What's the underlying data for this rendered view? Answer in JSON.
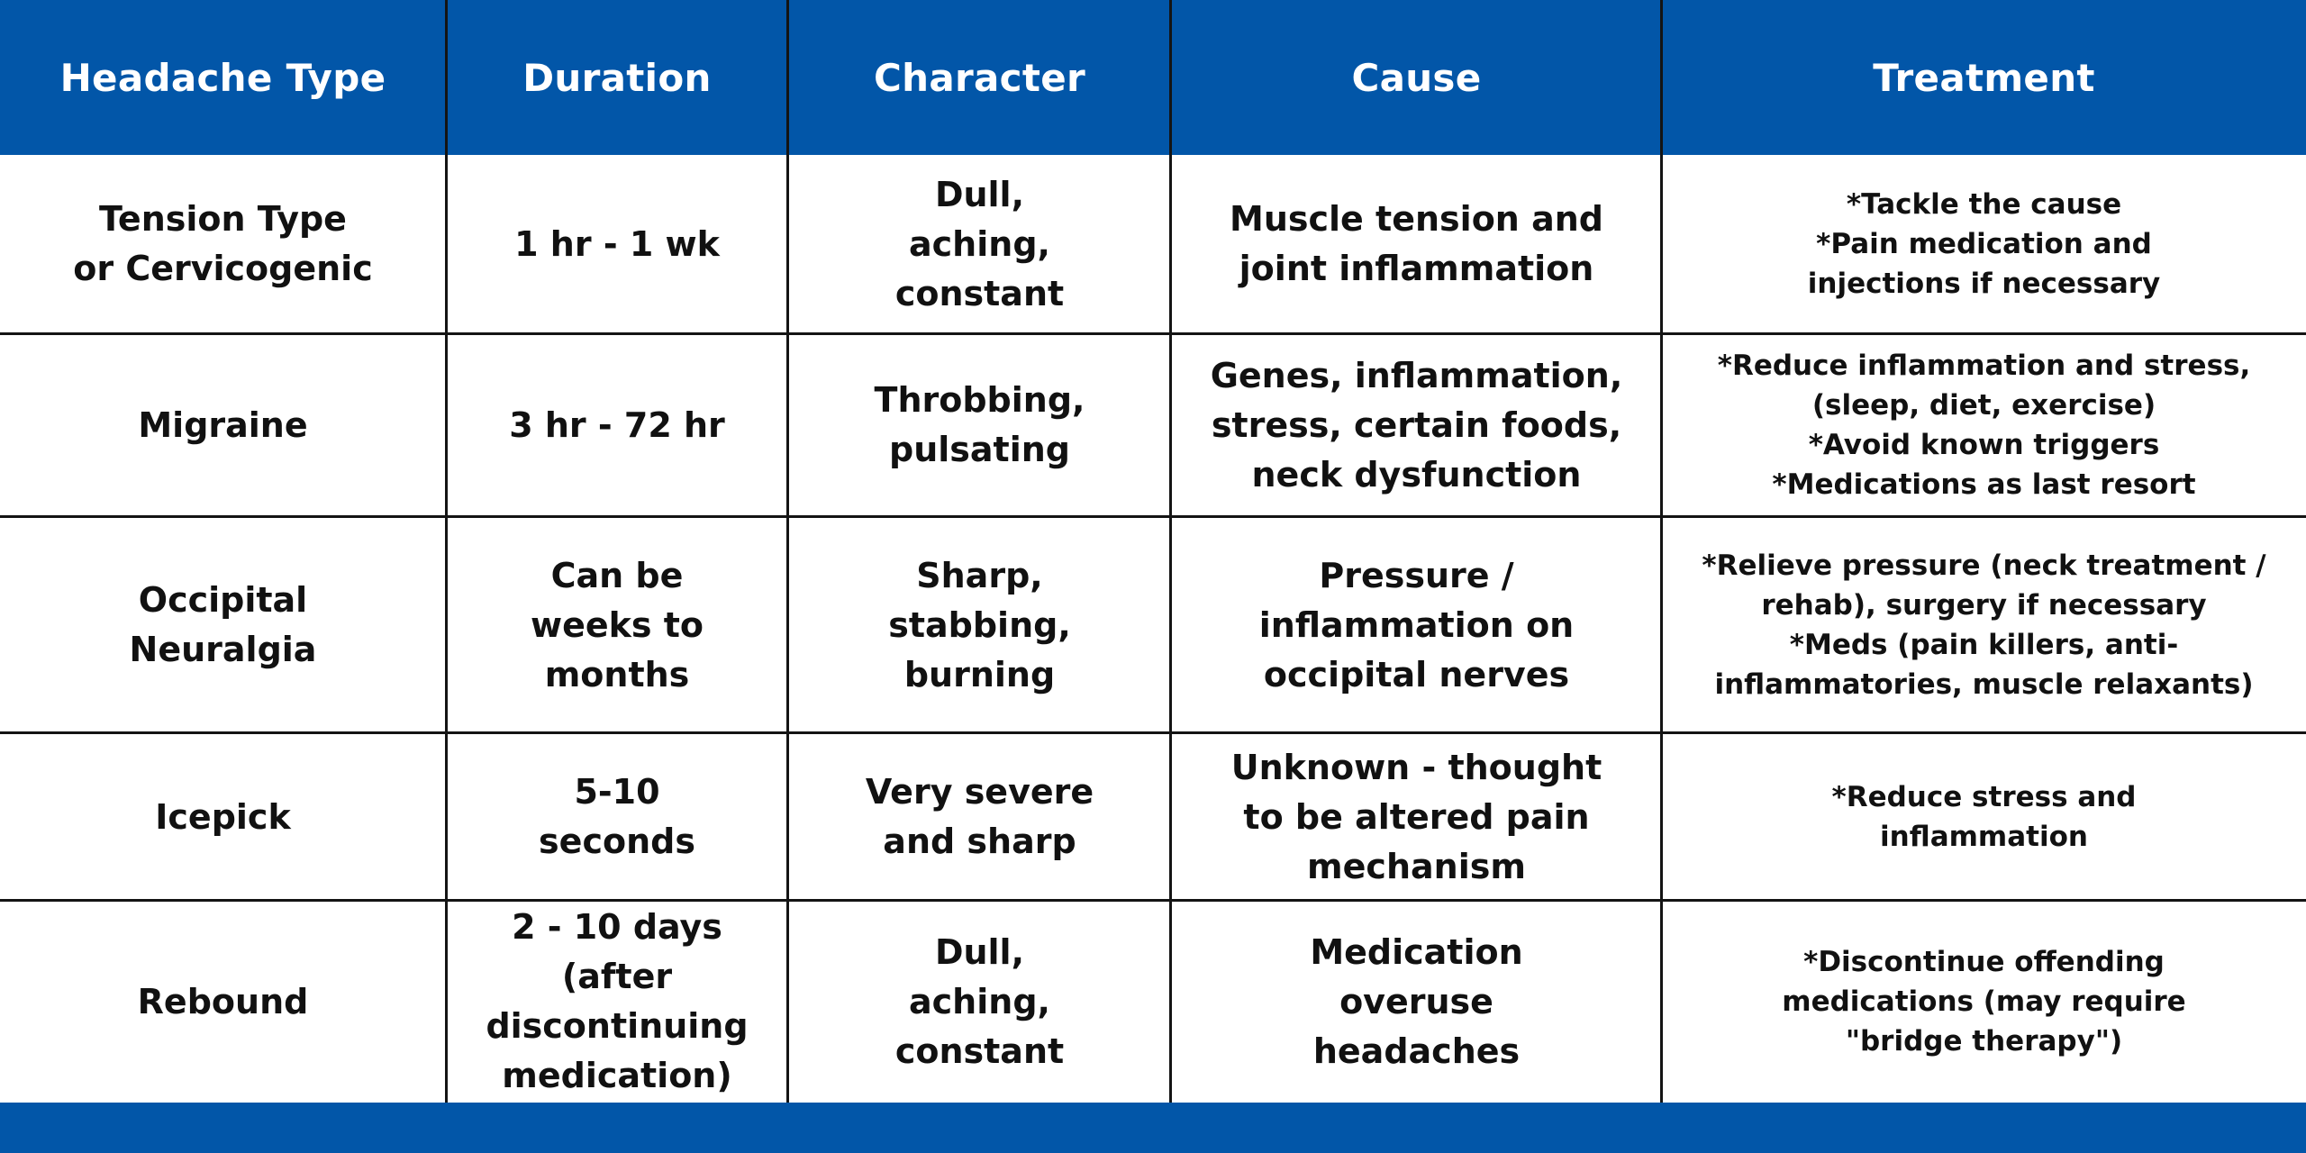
{
  "colors": {
    "header_bg": "#0256a8",
    "header_text": "#ffffff",
    "grid": "#141414",
    "body_text": "#111111"
  },
  "headers": [
    "Headache Type",
    "Duration",
    "Character",
    "Cause",
    "Treatment"
  ],
  "rows": [
    {
      "type": "Tension Type\nor Cervicogenic",
      "duration": "1 hr - 1 wk",
      "character": "Dull,\naching,\nconstant",
      "cause": "Muscle tension and\njoint inflammation",
      "treatment": "*Tackle the cause\n*Pain medication and\ninjections if necessary"
    },
    {
      "type": "Migraine",
      "duration": "3 hr - 72 hr",
      "character": "Throbbing,\npulsating",
      "cause": "Genes, inflammation,\nstress, certain foods,\nneck dysfunction",
      "treatment": "*Reduce inflammation and stress,\n(sleep, diet, exercise)\n*Avoid known triggers\n*Medications as last resort"
    },
    {
      "type": "Occipital\nNeuralgia",
      "duration": "Can be\nweeks to\nmonths",
      "character": "Sharp,\nstabbing,\nburning",
      "cause": "Pressure /\ninflammation on\noccipital nerves",
      "treatment": "*Relieve pressure (neck treatment /\nrehab), surgery if necessary\n*Meds (pain killers, anti-\ninflammatories, muscle relaxants)"
    },
    {
      "type": "Icepick",
      "duration": "5-10\nseconds",
      "character": "Very severe\nand sharp",
      "cause": "Unknown - thought\nto be altered pain\nmechanism",
      "treatment": "*Reduce stress and\ninflammation"
    },
    {
      "type": "Rebound",
      "duration": "2 - 10 days (after\ndiscontinuing\nmedication)",
      "character": "Dull,\naching,\nconstant",
      "cause": "Medication\noveruse\nheadaches",
      "treatment": "*Discontinue offending\nmedications (may require\n\"bridge therapy\")"
    }
  ]
}
